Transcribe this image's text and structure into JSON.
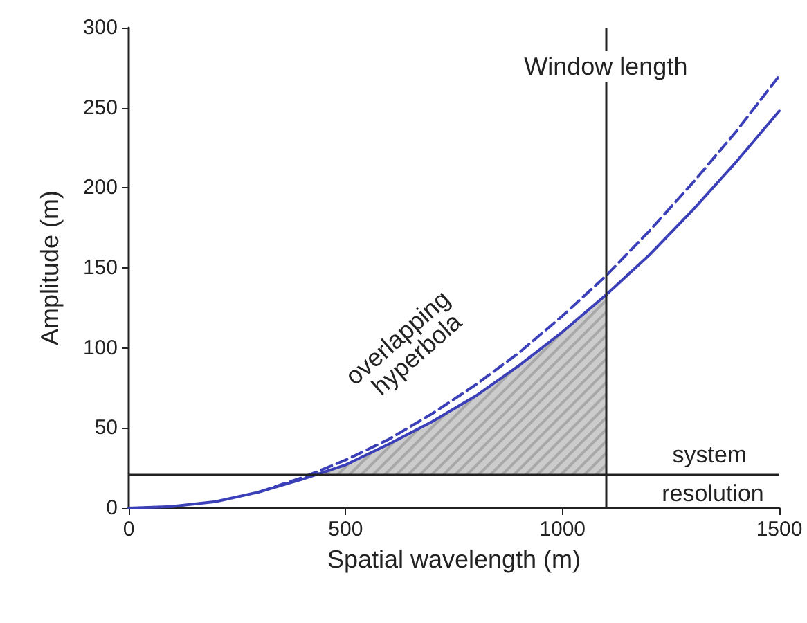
{
  "chart_data": {
    "type": "line",
    "xlabel": "Spatial wavelength (m)",
    "ylabel": "Amplitude (m)",
    "xlim": [
      0,
      1500
    ],
    "xticks": [
      0,
      500,
      1000,
      1500
    ],
    "ylim": [
      0,
      300
    ],
    "yticks": [
      0,
      50,
      100,
      150,
      200,
      250,
      300
    ],
    "marker": "none",
    "grid": false,
    "series": [
      {
        "color": "#3b3fb8",
        "line_style": "solid",
        "x": [
          0,
          100,
          200,
          300,
          400,
          500,
          600,
          700,
          800,
          900,
          1000,
          1100,
          1200,
          1300,
          1400,
          1500
        ],
        "values": [
          0,
          1,
          4,
          10,
          18,
          27,
          40,
          54,
          70,
          89,
          110,
          133,
          158,
          186,
          216,
          248
        ]
      },
      {
        "color": "#3b3fb8",
        "line_style": "dashed",
        "x": [
          300,
          400,
          500,
          600,
          700,
          800,
          900,
          1000,
          1100,
          1200,
          1300,
          1400,
          1500
        ],
        "values": [
          10,
          19,
          30,
          43,
          59,
          77,
          97,
          120,
          145,
          173,
          203,
          235,
          270
        ]
      },
      {
        "type": "area",
        "color": "#555555",
        "x": [
          430,
          500,
          600,
          700,
          800,
          900,
          1000,
          1100
        ],
        "values": [
          21,
          27,
          40,
          54,
          70,
          89,
          110,
          133
        ]
      }
    ],
    "ref_lines": [
      {
        "axis": "x",
        "value": 1100,
        "label": "Window length",
        "color": "#222222"
      },
      {
        "axis": "y",
        "value": 21,
        "label": "system resolution",
        "color": "#222222"
      }
    ],
    "annotations": [
      "overlapping hyperbola"
    ]
  }
}
